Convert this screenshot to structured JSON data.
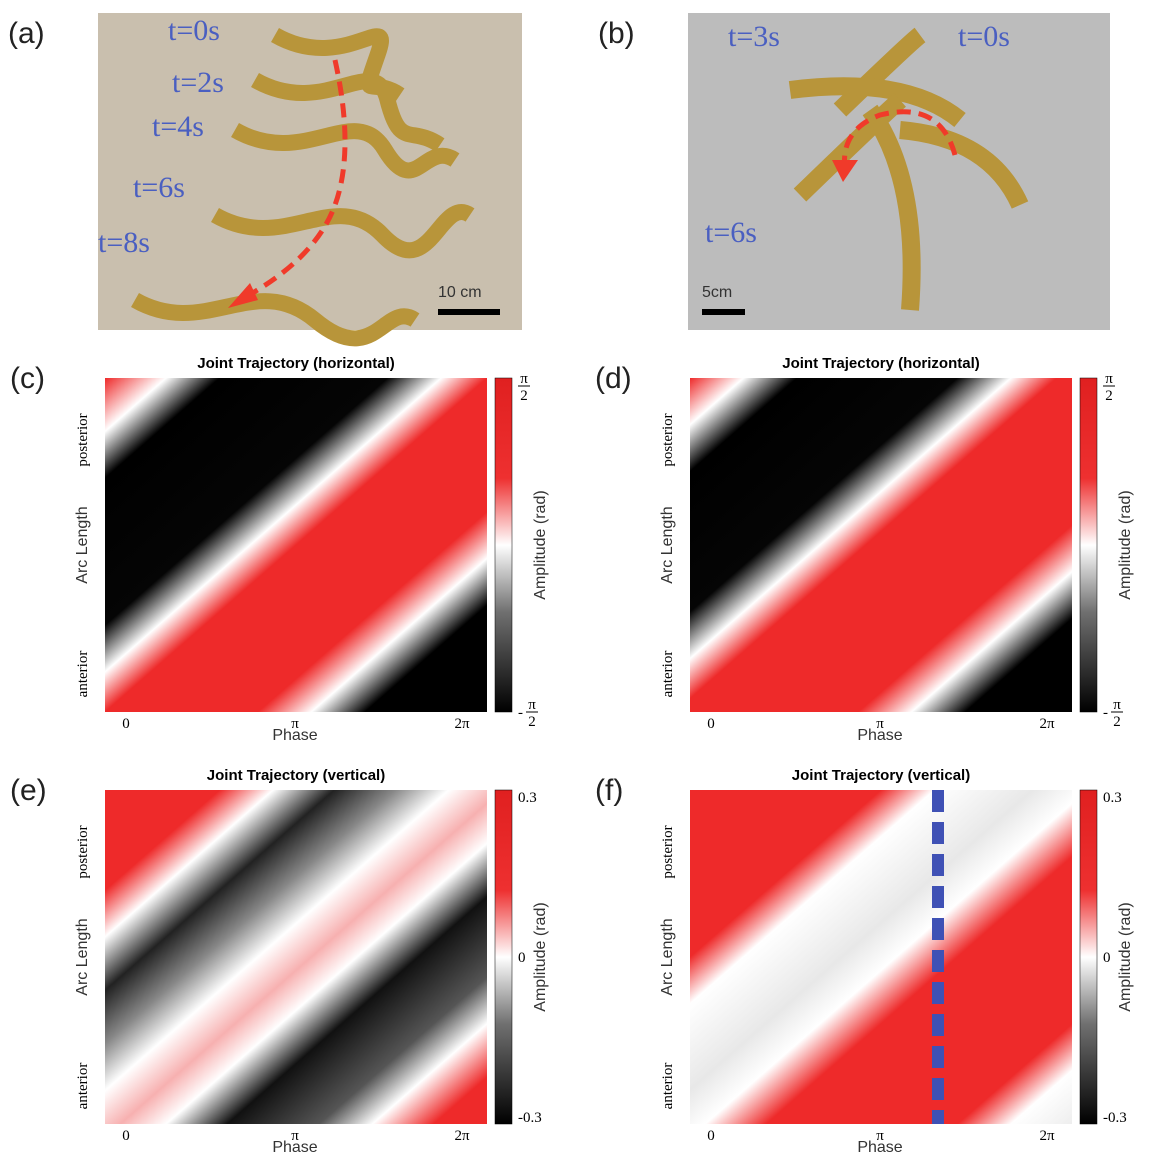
{
  "photos": [
    {
      "label": "(a)",
      "times": [
        "t=0s",
        "t=2s",
        "t=4s",
        "t=6s",
        "t=8s"
      ],
      "scale": "10 cm"
    },
    {
      "label": "(b)",
      "times": [
        "t=3s",
        "t=0s",
        "t=6s"
      ],
      "scale": "5cm"
    }
  ],
  "heatmaps": [
    {
      "label": "(c)",
      "title": "Joint Trajectory (horizontal)",
      "y_labels": [
        "posterior",
        "Arc Length",
        "anterior"
      ],
      "x_ticks": [
        "0",
        "π",
        "2π"
      ],
      "x_label": "Phase",
      "colorbar_label": "Amplitude (rad)",
      "colorbar_ticks": [
        {
          "num": "π",
          "den": "2"
        },
        {
          "sign": "-",
          "num": "π",
          "den": "2"
        }
      ]
    },
    {
      "label": "(d)",
      "title": "Joint Trajectory (horizontal)",
      "y_labels": [
        "posterior",
        "Arc Length",
        "anterior"
      ],
      "x_ticks": [
        "0",
        "π",
        "2π"
      ],
      "x_label": "Phase",
      "colorbar_label": "Amplitude (rad)",
      "colorbar_ticks": [
        {
          "num": "π",
          "den": "2"
        },
        {
          "sign": "-",
          "num": "π",
          "den": "2"
        }
      ]
    },
    {
      "label": "(e)",
      "title": "Joint Trajectory (vertical)",
      "y_labels": [
        "posterior",
        "Arc Length",
        "anterior"
      ],
      "x_ticks": [
        "0",
        "π",
        "2π"
      ],
      "x_label": "Phase",
      "colorbar_label": "Amplitude (rad)",
      "colorbar_ticks": [
        "0.3",
        "0",
        "-0.3"
      ]
    },
    {
      "label": "(f)",
      "title": "Joint Trajectory (vertical)",
      "y_labels": [
        "posterior",
        "Arc Length",
        "anterior"
      ],
      "x_ticks": [
        "0",
        "π",
        "2π"
      ],
      "x_label": "Phase",
      "colorbar_label": "Amplitude (rad)",
      "colorbar_ticks": [
        "0.3",
        "0",
        "-0.3"
      ]
    }
  ]
}
